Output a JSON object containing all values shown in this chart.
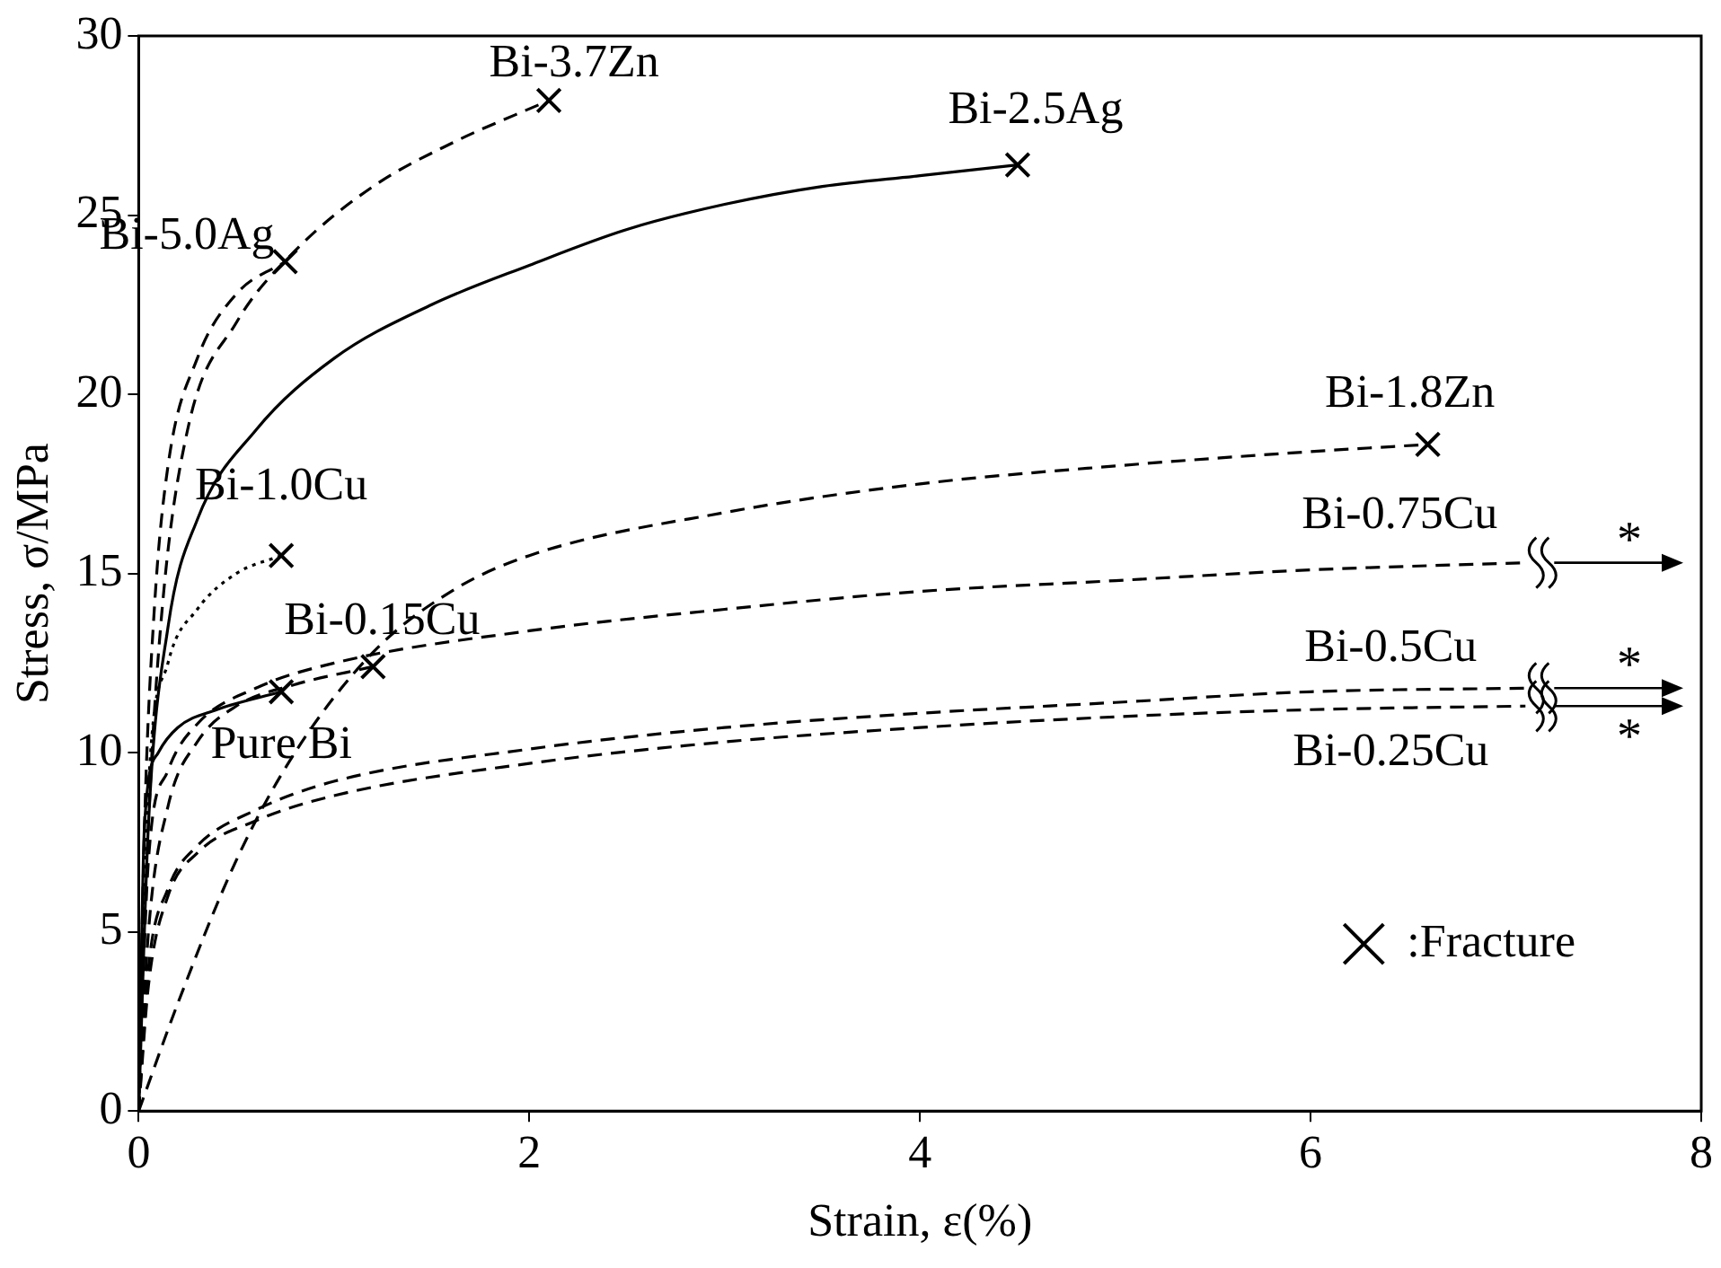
{
  "chart_data": {
    "type": "line",
    "xlabel": "Strain, ε(%)",
    "ylabel": "Stress, σ/MPa",
    "xlim": [
      0,
      8
    ],
    "xticks": [
      0,
      2,
      4,
      6,
      8
    ],
    "ylim": [
      0,
      30
    ],
    "yticks": [
      0,
      5,
      10,
      15,
      20,
      25,
      30
    ],
    "grid": false,
    "legend": "bottom right",
    "marker": "none",
    "series": [
      {
        "name": "Bi-5.0Ag",
        "color": "#000000",
        "line_style": "dashed",
        "x": [
          0,
          0.03,
          0.08,
          0.15,
          0.3,
          0.5,
          0.75
        ],
        "values": [
          0,
          8,
          14,
          18,
          21,
          22.8,
          23.7
        ]
      },
      {
        "name": "Bi-3.7Zn",
        "color": "#000000",
        "line_style": "dashed",
        "x": [
          0,
          0.05,
          0.12,
          0.25,
          0.5,
          0.8,
          1.2,
          1.6,
          2.1
        ],
        "values": [
          0,
          8,
          14,
          19,
          22,
          24,
          25.8,
          27,
          28.2
        ]
      },
      {
        "name": "Bi-2.5Ag",
        "color": "#000000",
        "line_style": "solid",
        "x": [
          0,
          0.05,
          0.15,
          0.3,
          0.6,
          1,
          1.5,
          2,
          2.5,
          3,
          3.5,
          4,
          4.5
        ],
        "values": [
          0,
          8,
          13.5,
          16.5,
          19,
          21,
          22.5,
          23.6,
          24.6,
          25.3,
          25.8,
          26.1,
          26.4
        ]
      },
      {
        "name": "Bi-1.8Zn",
        "color": "#000000",
        "line_style": "dashed",
        "x": [
          0,
          0.2,
          0.5,
          0.8,
          1.2,
          1.6,
          2,
          3,
          4,
          5,
          6,
          6.6
        ],
        "values": [
          0,
          3,
          7,
          10,
          12.8,
          14.5,
          15.5,
          16.7,
          17.5,
          18,
          18.4,
          18.6
        ]
      },
      {
        "name": "Bi-1.0Cu",
        "color": "#000000",
        "line_style": "dotted",
        "x": [
          0,
          0.05,
          0.15,
          0.3,
          0.5,
          0.73
        ],
        "values": [
          0,
          9,
          12.5,
          14,
          15,
          15.5
        ]
      },
      {
        "name": "Bi-0.15Cu",
        "color": "#000000",
        "line_style": "dashed",
        "x": [
          0,
          0.05,
          0.15,
          0.3,
          0.5,
          0.8,
          1.2
        ],
        "values": [
          0,
          5,
          8.5,
          10.3,
          11.3,
          11.9,
          12.4
        ]
      },
      {
        "name": "Pure Bi",
        "color": "#000000",
        "line_style": "solid",
        "x": [
          0,
          0.03,
          0.1,
          0.2,
          0.4,
          0.73
        ],
        "values": [
          0,
          8,
          10,
          10.7,
          11.2,
          11.7
        ]
      },
      {
        "name": "Bi-0.75Cu",
        "color": "#000000",
        "line_style": "dashed",
        "x": [
          0,
          0.05,
          0.15,
          0.3,
          0.6,
          1,
          2,
          3,
          4,
          5,
          6,
          7.1
        ],
        "values": [
          0,
          7,
          9.5,
          10.8,
          11.8,
          12.5,
          13.4,
          14,
          14.5,
          14.8,
          15.1,
          15.3
        ]
      },
      {
        "name": "Bi-0.5Cu",
        "color": "#000000",
        "line_style": "dashed",
        "x": [
          0,
          0.05,
          0.15,
          0.3,
          0.6,
          1,
          2,
          3,
          4,
          5,
          6,
          7.1
        ],
        "values": [
          0,
          4,
          6.2,
          7.4,
          8.4,
          9.2,
          10.1,
          10.7,
          11.1,
          11.4,
          11.7,
          11.8
        ]
      },
      {
        "name": "Bi-0.25Cu",
        "color": "#000000",
        "line_style": "dashed",
        "x": [
          0,
          0.05,
          0.15,
          0.3,
          0.6,
          1,
          2,
          3,
          4,
          5,
          6,
          7.1
        ],
        "values": [
          0,
          3.5,
          6,
          7.2,
          8.1,
          8.8,
          9.7,
          10.3,
          10.7,
          11,
          11.2,
          11.3
        ]
      },
      {
        "name": ":Fracture",
        "type": "scatter",
        "marker": "cross",
        "color": "#000000",
        "x": [
          0.75,
          2.1,
          4.5,
          6.6,
          0.73,
          1.2,
          0.73
        ],
        "values": [
          23.7,
          28.2,
          26.4,
          18.6,
          15.5,
          12.4,
          11.7
        ]
      }
    ],
    "annotations": [
      "*",
      "*",
      "*"
    ]
  }
}
